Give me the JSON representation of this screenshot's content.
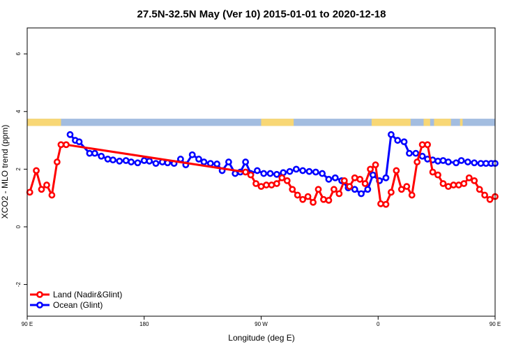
{
  "chart_data": {
    "type": "line",
    "title": "27.5N-32.5N May (Ver 10)   2015-01-01 to 2020-12-18",
    "xlabel": "Longitude (deg E)",
    "ylabel": "XCO2 - MLO trend (ppm)",
    "xlim": [
      90,
      450
    ],
    "ylim": [
      -3.1,
      6.9
    ],
    "x_ticks": [
      {
        "value": 90,
        "label": "90 E"
      },
      {
        "value": 180,
        "label": "180"
      },
      {
        "value": 270,
        "label": "90 W"
      },
      {
        "value": 360,
        "label": "0"
      },
      {
        "value": 450,
        "label": "90 E"
      },
      {
        "value": 540,
        "label": "180"
      }
    ],
    "y_ticks": [
      {
        "value": -2,
        "label": "-2"
      },
      {
        "value": 0,
        "label": "0"
      },
      {
        "value": 2,
        "label": "2"
      },
      {
        "value": 4,
        "label": "4"
      },
      {
        "value": 6,
        "label": "6"
      }
    ],
    "legend_position": "bottom-left",
    "colors": {
      "land": "#ff0000",
      "ocean": "#0000ff",
      "band_land": "#f8d775",
      "band_ocean": "#a3bde0"
    },
    "surface_band": {
      "y_range": [
        3.5,
        3.75
      ],
      "land_segments": [
        [
          90,
          116
        ],
        [
          270,
          295
        ],
        [
          355,
          385
        ],
        [
          395,
          400
        ],
        [
          403,
          416
        ],
        [
          423,
          425
        ],
        [
          450,
          476
        ]
      ]
    },
    "series": [
      {
        "name": "Land (Nadir&Glint)",
        "key": "land",
        "x": [
          92,
          97,
          101,
          105,
          109,
          113,
          116,
          120,
          258,
          262,
          266,
          270,
          274,
          278,
          282,
          286,
          290,
          294,
          298,
          302,
          306,
          310,
          314,
          318,
          322,
          326,
          330,
          334,
          338,
          342,
          346,
          350,
          354,
          358,
          362,
          366,
          370,
          374,
          378,
          382,
          386,
          390,
          394,
          398,
          402,
          406,
          410,
          414,
          418,
          422,
          426,
          430,
          434,
          438,
          442,
          446,
          450
        ],
        "y": [
          1.2,
          1.95,
          1.3,
          1.45,
          1.1,
          2.25,
          2.85,
          2.85,
          1.9,
          1.8,
          1.5,
          1.4,
          1.45,
          1.45,
          1.5,
          1.7,
          1.6,
          1.3,
          1.1,
          0.95,
          1.05,
          0.85,
          1.3,
          0.95,
          0.92,
          1.3,
          1.15,
          1.6,
          1.4,
          1.7,
          1.65,
          1.5,
          2.0,
          2.15,
          0.8,
          0.78,
          1.2,
          1.95,
          1.3,
          1.4,
          1.1,
          2.25,
          2.85,
          2.85,
          1.9,
          1.8,
          1.5,
          1.4,
          1.45,
          1.45,
          1.5,
          1.7,
          1.6,
          1.3,
          1.1,
          0.95,
          1.05
        ],
        "segments_break_after": [
          8
        ]
      },
      {
        "name": "Ocean (Glint)",
        "key": "ocean",
        "x": [
          123,
          127,
          130,
          138,
          142,
          147,
          152,
          156,
          161,
          166,
          170,
          175,
          180,
          184,
          189,
          194,
          198,
          203,
          208,
          212,
          217,
          222,
          226,
          231,
          236,
          240,
          245,
          250,
          254,
          258,
          262,
          267,
          272,
          277,
          282,
          287,
          292,
          297,
          302,
          307,
          312,
          317,
          322,
          327,
          332,
          337,
          342,
          347,
          352,
          356,
          361,
          366,
          370,
          375,
          380,
          384,
          389,
          394,
          398,
          402,
          406,
          410,
          414,
          420,
          424,
          429,
          434,
          439,
          443,
          447,
          450
        ],
        "y": [
          3.2,
          3.0,
          2.95,
          2.55,
          2.55,
          2.45,
          2.35,
          2.32,
          2.28,
          2.3,
          2.25,
          2.22,
          2.3,
          2.28,
          2.2,
          2.25,
          2.22,
          2.2,
          2.35,
          2.15,
          2.5,
          2.35,
          2.25,
          2.2,
          2.18,
          1.95,
          2.25,
          1.85,
          1.9,
          2.25,
          1.85,
          1.95,
          1.85,
          1.85,
          1.82,
          1.88,
          1.92,
          2.0,
          1.95,
          1.92,
          1.9,
          1.85,
          1.65,
          1.7,
          1.6,
          1.35,
          1.3,
          1.15,
          1.3,
          1.8,
          1.6,
          1.7,
          3.2,
          3.0,
          2.95,
          2.55,
          2.55,
          2.45,
          2.35,
          2.32,
          2.28,
          2.3,
          2.25,
          2.22,
          2.3,
          2.25,
          2.22,
          2.2,
          2.2,
          2.2,
          2.2
        ]
      }
    ]
  }
}
